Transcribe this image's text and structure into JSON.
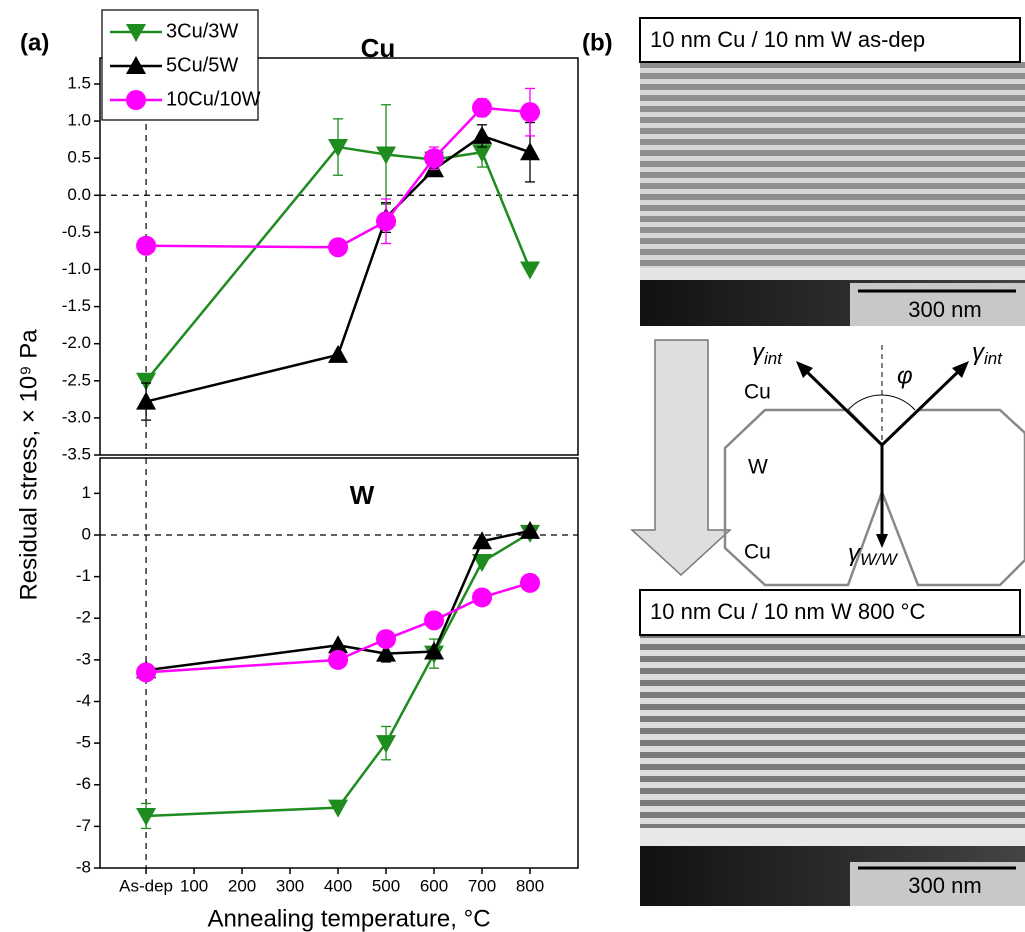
{
  "panel_labels": [
    "(a)",
    "(b)"
  ],
  "ylabel": "Residual stress, × 10⁹ Pa",
  "chart_data": [
    {
      "type": "line",
      "title": "Cu",
      "x": [
        0,
        400,
        500,
        600,
        700,
        800
      ],
      "xlim": [
        -96,
        900
      ],
      "ylim": [
        -3.5,
        1.85
      ],
      "yticks": [
        1.5,
        {
          "value": 1,
          "label": "1.0"
        },
        0.5,
        {
          "value": 0,
          "label": "0.0"
        },
        -0.5,
        {
          "value": -1,
          "label": "-1.0"
        },
        -1.5,
        {
          "value": -2,
          "label": "-2.0"
        },
        -2.5,
        {
          "value": -3,
          "label": "-3.0"
        },
        -3.5
      ],
      "legend": "top-left",
      "series": [
        {
          "name": "3Cu/3W",
          "color": "#1e8c1e",
          "marker": "triangle-down",
          "values": [
            -2.5,
            0.65,
            0.55,
            0.48,
            0.58,
            -1.0
          ],
          "errors": [
            null,
            0.38,
            0.67,
            null,
            0.2,
            null
          ]
        },
        {
          "name": "5Cu/5W",
          "color": "#000000",
          "marker": "triangle-up",
          "values": [
            -2.78,
            -2.15,
            -0.3,
            0.35,
            0.8,
            0.58
          ],
          "errors": [
            0.25,
            null,
            0.2,
            null,
            0.15,
            0.4
          ]
        },
        {
          "name": "10Cu/10W",
          "color": "#ff00ff",
          "marker": "circle",
          "values": [
            -0.68,
            -0.7,
            -0.35,
            0.5,
            1.18,
            1.12
          ],
          "errors": [
            null,
            null,
            0.3,
            0.15,
            0.12,
            0.32
          ]
        }
      ]
    },
    {
      "type": "line",
      "title": "W",
      "xlabel": "Annealing temperature, °C",
      "x": [
        0,
        400,
        500,
        600,
        700,
        800
      ],
      "xlim": [
        -96,
        900
      ],
      "xticks": [
        {
          "value": 0,
          "label": "As-dep"
        },
        100,
        200,
        300,
        400,
        500,
        600,
        700,
        800
      ],
      "ylim": [
        -8,
        1.85
      ],
      "yticks": [
        1,
        0,
        -1,
        -2,
        -3,
        -4,
        -5,
        -6,
        -7,
        -8
      ],
      "series": [
        {
          "color": "#1e8c1e",
          "marker": "triangle-down",
          "values": [
            -6.75,
            -6.55,
            -5.0,
            -2.85,
            -0.65,
            0.05
          ],
          "errors": [
            0.3,
            null,
            0.4,
            0.35,
            null,
            null
          ]
        },
        {
          "color": "#000000",
          "marker": "triangle-up",
          "values": [
            -3.25,
            -2.65,
            -2.85,
            -2.8,
            -0.15,
            0.1
          ],
          "errors": [
            null,
            null,
            0.2,
            null,
            null,
            null
          ]
        },
        {
          "color": "#ff00ff",
          "marker": "circle",
          "values": [
            -3.3,
            -3.0,
            -2.5,
            -2.05,
            -1.5,
            -1.15
          ],
          "errors": [
            null,
            null,
            null,
            null,
            null,
            null
          ]
        }
      ]
    }
  ],
  "micrographs": [
    {
      "caption": "10 nm Cu / 10 nm W as-dep",
      "scale_bar": "300 nm"
    },
    {
      "caption": "10 nm Cu / 10 nm W 800 °C",
      "scale_bar": "300 nm"
    }
  ],
  "schematic": {
    "gamma": "γ",
    "int": "int",
    "ww": "W/W",
    "phi": "φ",
    "cu_top": "Cu",
    "w": "W",
    "cu_bottom": "Cu"
  }
}
